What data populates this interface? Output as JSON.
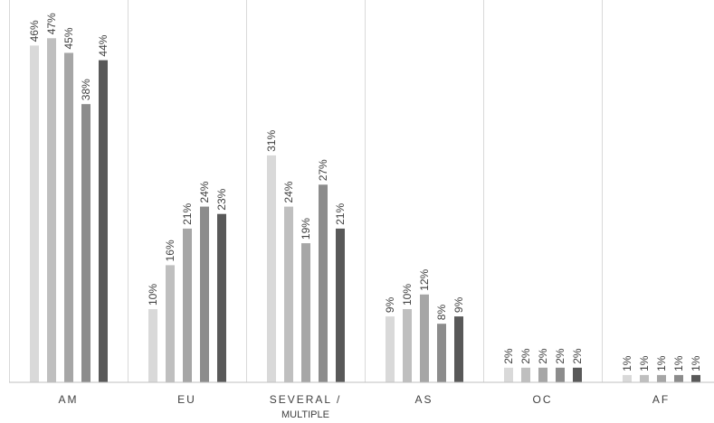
{
  "chart_data": {
    "type": "bar",
    "categories": [
      "AM",
      "EU",
      "SEVERAL /\nMULTIPLE",
      "AS",
      "OC",
      "AF"
    ],
    "series": [
      {
        "values": [
          46,
          10,
          31,
          9,
          2,
          1
        ],
        "labels": [
          "46%",
          "10%",
          "31%",
          "9%",
          "2%",
          "1%"
        ],
        "color": "#d9d9d9"
      },
      {
        "values": [
          47,
          16,
          24,
          10,
          2,
          1
        ],
        "labels": [
          "47%",
          "16%",
          "24%",
          "10%",
          "2%",
          "1%"
        ],
        "color": "#bfbfbf"
      },
      {
        "values": [
          45,
          21,
          19,
          12,
          2,
          1
        ],
        "labels": [
          "45%",
          "21%",
          "19%",
          "12%",
          "2%",
          "1%"
        ],
        "color": "#a6a6a6"
      },
      {
        "values": [
          38,
          24,
          27,
          8,
          2,
          1
        ],
        "labels": [
          "38%",
          "24%",
          "27%",
          "8%",
          "2%",
          "1%"
        ],
        "color": "#8c8c8c"
      },
      {
        "values": [
          44,
          23,
          21,
          9,
          2,
          1
        ],
        "labels": [
          "44%",
          "23%",
          "21%",
          "9%",
          "2%",
          "1%"
        ],
        "color": "#595959"
      }
    ],
    "ylim": [
      0,
      50
    ],
    "grid": false,
    "legend": "none",
    "title": "",
    "xlabel": "",
    "ylabel": ""
  }
}
